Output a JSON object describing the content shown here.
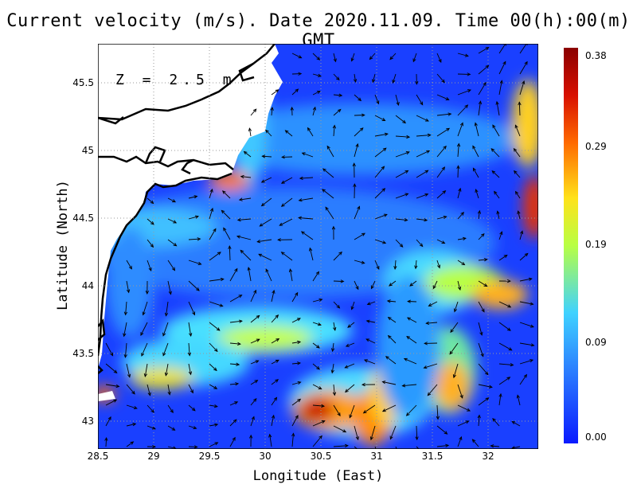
{
  "title": "Current velocity (m/s). Date 2020.11.09. Time 00(h):00(m) GMT",
  "xlabel": "Longitude (East)",
  "ylabel": "Latitude (North)",
  "depth_label": "Z = 2.5 m",
  "x_ticks": [
    "28.5",
    "29",
    "29.5",
    "30",
    "30.5",
    "31",
    "31.5",
    "32"
  ],
  "y_ticks": [
    "45.5",
    "45",
    "44.5",
    "44",
    "43.5",
    "43"
  ],
  "colorbar_ticks": [
    "0.38",
    "0.29",
    "0.19",
    "0.09",
    "0.00"
  ],
  "map_data": {
    "type": "vector field over speed heatmap",
    "x_range": [
      28.5,
      32.45
    ],
    "y_range": [
      42.8,
      45.8
    ],
    "colorbar_range": [
      0.0,
      0.38
    ],
    "colormap": [
      "#0a1aff",
      "#2b7cff",
      "#3fd2ff",
      "#b8ff44",
      "#ffe21a",
      "#ff6a00",
      "#d81000",
      "#8a0000"
    ],
    "land_color": "#ffffff",
    "coast_color": "#000000",
    "grid": "dotted"
  }
}
